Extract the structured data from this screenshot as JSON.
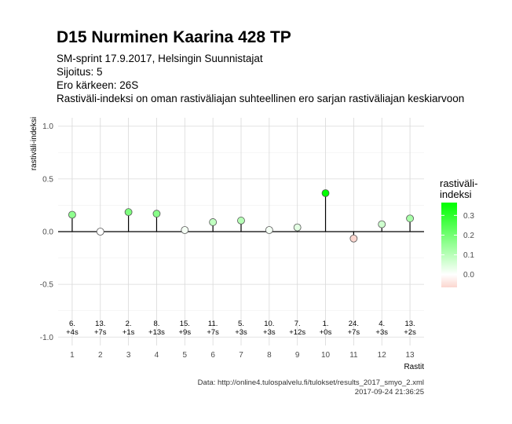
{
  "title": "D15 Nurminen Kaarina 428 TP",
  "subtitle_lines": [
    "SM-sprint 17.9.2017, Helsingin Suunnistajat",
    "Sijoitus: 5",
    "Ero kärkeen: 26S",
    "Rastiväli-indeksi on oman rastiväliajan suhteellinen ero sarjan rastiväliajan keskiarvoon"
  ],
  "caption_lines": [
    "Data: http://online4.tulospalvelu.fi/tulokset/results_2017_smyo_2.xml",
    "2017-09-24 21:36:25"
  ],
  "legend": {
    "title_lines": [
      "rastiväli-",
      "indeksi"
    ],
    "ticks": [
      0.3,
      0.2,
      0.1,
      0.0
    ],
    "tick_labels": [
      "0.3",
      "0.2",
      "0.1",
      "0.0"
    ],
    "low_color": "#fbd6cf",
    "zero_color": "#ffffff",
    "high_color": "#00ff00"
  },
  "chart_data": {
    "type": "scatter",
    "style": "lollipop",
    "xlabel": "Rastit",
    "ylabel": "rastiväli-indeksi",
    "ylim": [
      -1.0,
      1.0
    ],
    "xlim": [
      0.5,
      13.5
    ],
    "y_ticks": [
      -1.0,
      -0.5,
      0.0,
      0.5,
      1.0
    ],
    "y_tick_labels": [
      "-1.0",
      "-0.5",
      "0.0",
      "0.5",
      "1.0"
    ],
    "x_ticks": [
      1,
      2,
      3,
      4,
      5,
      6,
      7,
      8,
      9,
      10,
      11,
      12,
      13
    ],
    "x_tick_labels": [
      "1",
      "2",
      "3",
      "4",
      "5",
      "6",
      "7",
      "8",
      "9",
      "10",
      "11",
      "12",
      "13"
    ],
    "grid": true,
    "legend_position": "right",
    "points": [
      {
        "x": 1,
        "y": 0.16,
        "rank": "6.",
        "diff": "+4s"
      },
      {
        "x": 2,
        "y": 0.0,
        "rank": "13.",
        "diff": "+7s"
      },
      {
        "x": 3,
        "y": 0.185,
        "rank": "2.",
        "diff": "+1s"
      },
      {
        "x": 4,
        "y": 0.17,
        "rank": "8.",
        "diff": "+13s"
      },
      {
        "x": 5,
        "y": 0.015,
        "rank": "15.",
        "diff": "+9s"
      },
      {
        "x": 6,
        "y": 0.09,
        "rank": "11.",
        "diff": "+7s"
      },
      {
        "x": 7,
        "y": 0.105,
        "rank": "5.",
        "diff": "+3s"
      },
      {
        "x": 8,
        "y": 0.015,
        "rank": "10.",
        "diff": "+3s"
      },
      {
        "x": 9,
        "y": 0.04,
        "rank": "7.",
        "diff": "+12s"
      },
      {
        "x": 10,
        "y": 0.365,
        "rank": "1.",
        "diff": "+0s"
      },
      {
        "x": 11,
        "y": -0.065,
        "rank": "24.",
        "diff": "+7s"
      },
      {
        "x": 12,
        "y": 0.07,
        "rank": "4.",
        "diff": "+3s"
      },
      {
        "x": 13,
        "y": 0.125,
        "rank": "13.",
        "diff": "+2s"
      }
    ]
  }
}
